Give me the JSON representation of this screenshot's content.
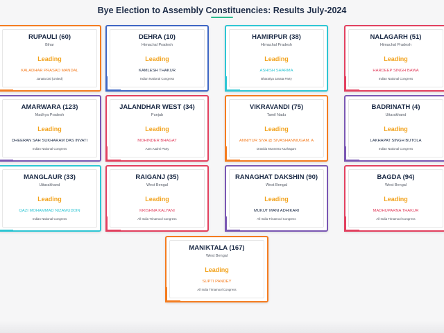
{
  "page": {
    "title": "Bye Election to Assembly Constituencies: Results July-2024"
  },
  "cards": [
    {
      "constituency": "RUPAULI (60)",
      "state": "Bihar",
      "status": "Leading",
      "candidate": "KALADHAR PRASAD MANDAL",
      "party": "Janata Dal (United)",
      "accent": "#f47c20",
      "candidate_color": "#f47c20"
    },
    {
      "constituency": "DEHRA (10)",
      "state": "Himachal Pradesh",
      "status": "Leading",
      "candidate": "KAMLESH THAKUR",
      "party": "Indian National Congress",
      "accent": "#3d66c4",
      "candidate_color": "#1c2b46"
    },
    {
      "constituency": "HAMIRPUR (38)",
      "state": "Himachal Pradesh",
      "status": "Leading",
      "candidate": "ASHISH SHARMA",
      "party": "Bharatiya Janata Party",
      "accent": "#2ec6d4",
      "candidate_color": "#2ec6d4"
    },
    {
      "constituency": "NALAGARH (51)",
      "state": "Himachal Pradesh",
      "status": "Leading",
      "candidate": "HARDEEP SINGH BAWA",
      "party": "Indian National Congress",
      "accent": "#e2405f",
      "candidate_color": "#e2405f"
    },
    {
      "constituency": "AMARWARA (123)",
      "state": "Madhya Pradesh",
      "status": "Leading",
      "candidate": "DHEERAN SAH SUKHARAM DAS INVATI",
      "party": "Indian National Congress",
      "accent": "#7a57b3",
      "candidate_color": "#1c2b46"
    },
    {
      "constituency": "JALANDHAR WEST (34)",
      "state": "Punjab",
      "status": "Leading",
      "candidate": "MOHINDER BHAGAT",
      "party": "Aam Aadmi Party",
      "accent": "#e2405f",
      "candidate_color": "#e2405f"
    },
    {
      "constituency": "VIKRAVANDI (75)",
      "state": "Tamil Nadu",
      "status": "Leading",
      "candidate": "ANNIYUR SIVA @ SIVASHANMUGAM. A",
      "party": "Dravida Munnetra Kazhagam",
      "accent": "#f47c20",
      "candidate_color": "#f47c20"
    },
    {
      "constituency": "BADRINATH (4)",
      "state": "Uttarakhand",
      "status": "Leading",
      "candidate": "LAKHAPAT SINGH BUTOLA",
      "party": "Indian National Congress",
      "accent": "#7a57b3",
      "candidate_color": "#1c2b46"
    },
    {
      "constituency": "MANGLAUR (33)",
      "state": "Uttarakhand",
      "status": "Leading",
      "candidate": "QAZI MOHAMMAD NIZAMUDDIN",
      "party": "Indian National Congress",
      "accent": "#2ec6d4",
      "candidate_color": "#2ec6d4"
    },
    {
      "constituency": "RAIGANJ (35)",
      "state": "West Bengal",
      "status": "Leading",
      "candidate": "KRISHNA KALYANI",
      "party": "All India Trinamool Congress",
      "accent": "#e2405f",
      "candidate_color": "#e2405f"
    },
    {
      "constituency": "RANAGHAT DAKSHIN (90)",
      "state": "West Bengal",
      "status": "Leading",
      "candidate": "MUKUT MANI ADHIKARI",
      "party": "All India Trinamool Congress",
      "accent": "#7a57b3",
      "candidate_color": "#1c2b46"
    },
    {
      "constituency": "BAGDA (94)",
      "state": "West Bengal",
      "status": "Leading",
      "candidate": "MADHUPARNA THAKUR",
      "party": "All India Trinamool Congress",
      "accent": "#e2405f",
      "candidate_color": "#e2405f"
    },
    {
      "constituency": "MANIKTALA (167)",
      "state": "West Bengal",
      "status": "Leading",
      "candidate": "SUPTI PANDEY",
      "party": "All India Trinamool Congress",
      "accent": "#f47c20",
      "candidate_color": "#f47c20"
    }
  ]
}
